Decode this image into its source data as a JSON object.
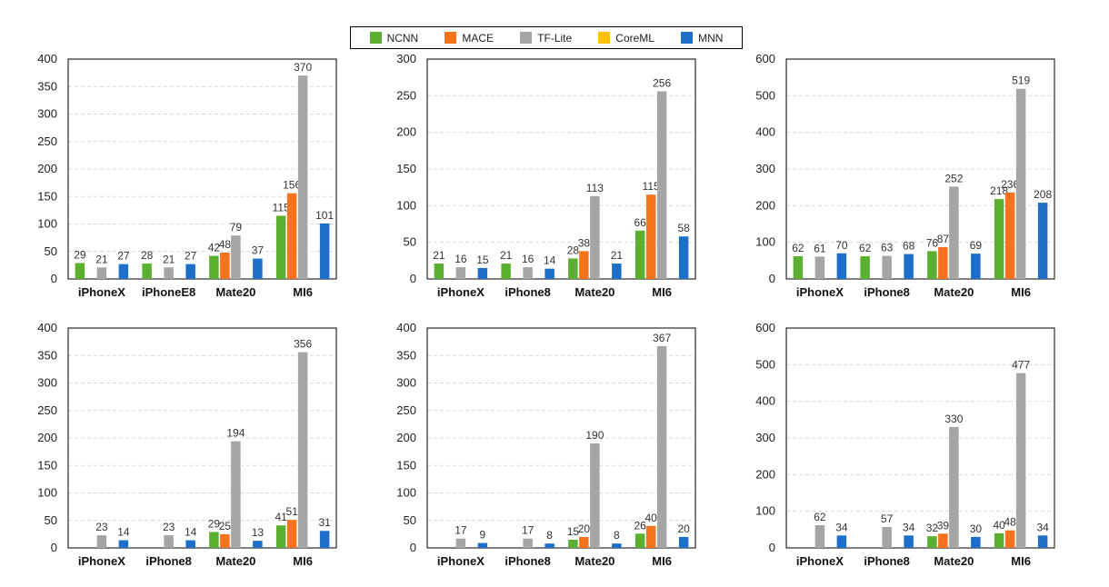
{
  "legend": [
    {
      "name": "NCNN",
      "color": "#5BB031"
    },
    {
      "name": "MACE",
      "color": "#F5731D"
    },
    {
      "name": "TF-Lite",
      "color": "#A5A5A5"
    },
    {
      "name": "CoreML",
      "color": "#FFC000"
    },
    {
      "name": "MNN",
      "color": "#1E6FC9"
    }
  ],
  "chart_data": [
    {
      "type": "bar",
      "categories": [
        "iPhoneX",
        "iPhoneE8",
        "Mate20",
        "MI6"
      ],
      "ylim": [
        0,
        400
      ],
      "yticks": [
        0,
        50,
        100,
        150,
        200,
        250,
        300,
        350,
        400
      ],
      "series": [
        {
          "name": "NCNN",
          "values": [
            29,
            28,
            42,
            115
          ]
        },
        {
          "name": "MACE",
          "values": [
            null,
            null,
            48,
            156
          ]
        },
        {
          "name": "TF-Lite",
          "values": [
            21,
            21,
            79,
            370
          ]
        },
        {
          "name": "CoreML",
          "values": [
            null,
            null,
            null,
            null
          ]
        },
        {
          "name": "MNN",
          "values": [
            27,
            27,
            37,
            101
          ]
        }
      ]
    },
    {
      "type": "bar",
      "categories": [
        "iPhoneX",
        "iPhone8",
        "Mate20",
        "MI6"
      ],
      "ylim": [
        0,
        300
      ],
      "yticks": [
        0,
        50,
        100,
        150,
        200,
        250,
        300
      ],
      "series": [
        {
          "name": "NCNN",
          "values": [
            21,
            21,
            28,
            66
          ]
        },
        {
          "name": "MACE",
          "values": [
            null,
            null,
            38,
            115
          ]
        },
        {
          "name": "TF-Lite",
          "values": [
            16,
            16,
            113,
            256
          ]
        },
        {
          "name": "CoreML",
          "values": [
            null,
            null,
            null,
            null
          ]
        },
        {
          "name": "MNN",
          "values": [
            15,
            14,
            21,
            58
          ]
        }
      ]
    },
    {
      "type": "bar",
      "categories": [
        "iPhoneX",
        "iPhone8",
        "Mate20",
        "MI6"
      ],
      "ylim": [
        0,
        600
      ],
      "yticks": [
        0,
        100,
        200,
        300,
        400,
        500,
        600
      ],
      "series": [
        {
          "name": "NCNN",
          "values": [
            62,
            62,
            76,
            218
          ]
        },
        {
          "name": "MACE",
          "values": [
            null,
            null,
            87,
            236
          ]
        },
        {
          "name": "TF-Lite",
          "values": [
            61,
            63,
            252,
            519
          ]
        },
        {
          "name": "CoreML",
          "values": [
            null,
            null,
            null,
            null
          ]
        },
        {
          "name": "MNN",
          "values": [
            70,
            68,
            69,
            208
          ]
        }
      ]
    },
    {
      "type": "bar",
      "categories": [
        "iPhoneX",
        "iPhone8",
        "Mate20",
        "MI6"
      ],
      "ylim": [
        0,
        400
      ],
      "yticks": [
        0,
        50,
        100,
        150,
        200,
        250,
        300,
        350,
        400
      ],
      "series": [
        {
          "name": "NCNN",
          "values": [
            null,
            null,
            29,
            41
          ]
        },
        {
          "name": "MACE",
          "values": [
            null,
            null,
            25,
            51
          ]
        },
        {
          "name": "TF-Lite",
          "values": [
            23,
            23,
            194,
            356
          ]
        },
        {
          "name": "CoreML",
          "values": [
            null,
            null,
            null,
            null
          ]
        },
        {
          "name": "MNN",
          "values": [
            14,
            14,
            13,
            31
          ]
        }
      ]
    },
    {
      "type": "bar",
      "categories": [
        "iPhoneX",
        "iPhone8",
        "Mate20",
        "MI6"
      ],
      "ylim": [
        0,
        400
      ],
      "yticks": [
        0,
        50,
        100,
        150,
        200,
        250,
        300,
        350,
        400
      ],
      "series": [
        {
          "name": "NCNN",
          "values": [
            null,
            null,
            15,
            26
          ]
        },
        {
          "name": "MACE",
          "values": [
            null,
            null,
            20,
            40
          ]
        },
        {
          "name": "TF-Lite",
          "values": [
            17,
            17,
            190,
            367
          ]
        },
        {
          "name": "CoreML",
          "values": [
            null,
            null,
            null,
            null
          ]
        },
        {
          "name": "MNN",
          "values": [
            9,
            8,
            8,
            20
          ]
        }
      ]
    },
    {
      "type": "bar",
      "categories": [
        "iPhoneX",
        "iPhone8",
        "Mate20",
        "MI6"
      ],
      "ylim": [
        0,
        600
      ],
      "yticks": [
        0,
        100,
        200,
        300,
        400,
        500,
        600
      ],
      "series": [
        {
          "name": "NCNN",
          "values": [
            null,
            null,
            32,
            40
          ]
        },
        {
          "name": "MACE",
          "values": [
            null,
            null,
            39,
            48
          ]
        },
        {
          "name": "TF-Lite",
          "values": [
            62,
            57,
            330,
            477
          ]
        },
        {
          "name": "CoreML",
          "values": [
            null,
            null,
            null,
            null
          ]
        },
        {
          "name": "MNN",
          "values": [
            34,
            34,
            30,
            34
          ]
        }
      ]
    }
  ]
}
